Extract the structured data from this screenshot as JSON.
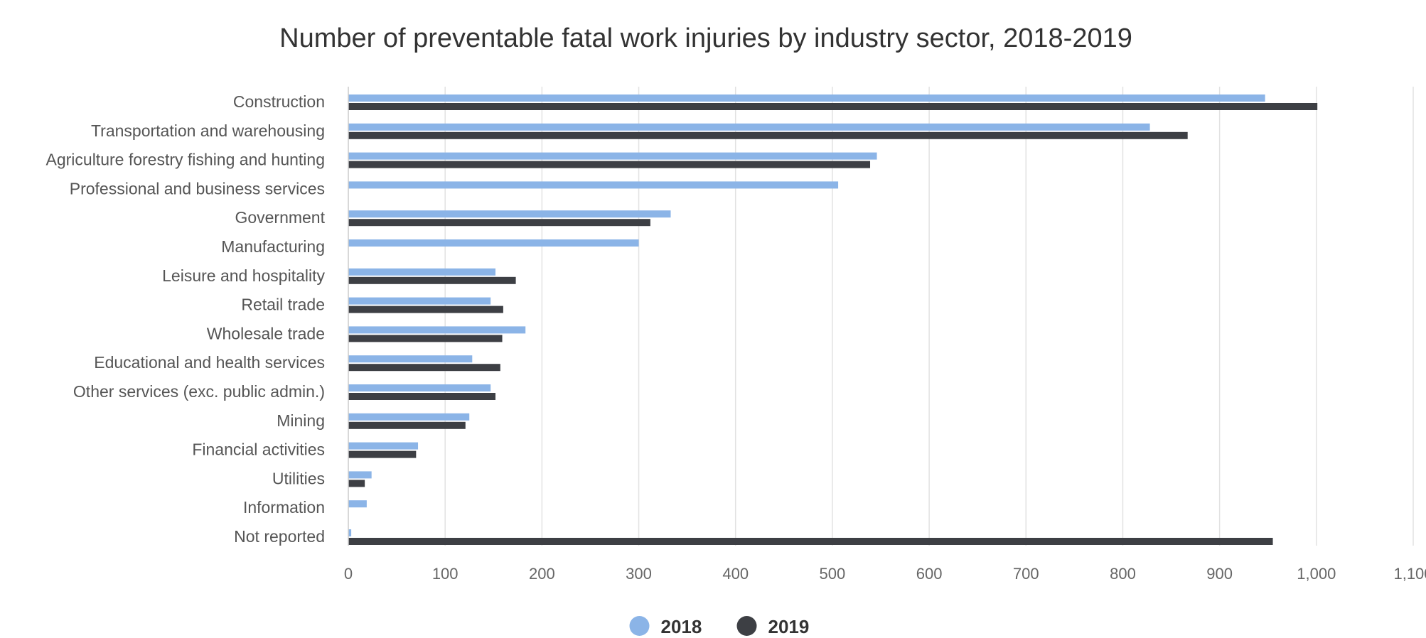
{
  "chart_data": {
    "type": "bar",
    "orientation": "horizontal",
    "title": "Number of preventable fatal work injuries by industry sector, 2018-2019",
    "xlabel": "",
    "ylabel": "",
    "xlim": [
      0,
      1100
    ],
    "x_ticks": [
      0,
      100,
      200,
      300,
      400,
      500,
      600,
      700,
      800,
      900,
      1000,
      1100
    ],
    "x_tick_labels": [
      "0",
      "100",
      "200",
      "300",
      "400",
      "500",
      "600",
      "700",
      "800",
      "900",
      "1,000",
      "1,100"
    ],
    "grid": true,
    "legend_position": "bottom",
    "categories": [
      "Construction",
      "Transportation and warehousing",
      "Agriculture forestry fishing and hunting",
      "Professional and business services",
      "Government",
      "Manufacturing",
      "Leisure and hospitality",
      "Retail trade",
      "Wholesale trade",
      "Educational and health services",
      "Other services (exc. public admin.)",
      "Mining",
      "Financial activities",
      "Utilities",
      "Information",
      "Not reported"
    ],
    "series": [
      {
        "name": "2018",
        "color": "#8bb4e7",
        "values": [
          947,
          828,
          546,
          506,
          333,
          300,
          152,
          147,
          183,
          128,
          147,
          125,
          72,
          24,
          19,
          3
        ]
      },
      {
        "name": "2019",
        "color": "#3d3f44",
        "values": [
          1001,
          867,
          539,
          null,
          312,
          null,
          173,
          160,
          159,
          157,
          152,
          121,
          70,
          17,
          null,
          955
        ]
      }
    ]
  }
}
